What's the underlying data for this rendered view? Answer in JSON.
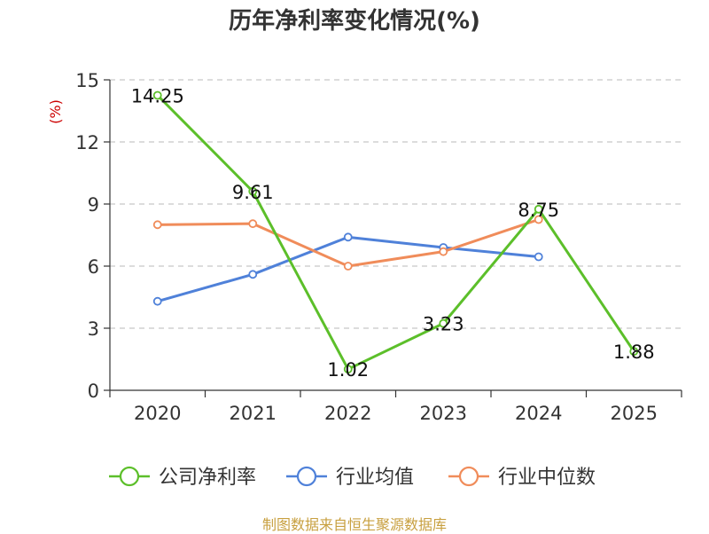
{
  "chart_data": {
    "type": "line",
    "title": "历年净利率变化情况(%)",
    "ylabel": "(%)",
    "categories": [
      "2020",
      "2021",
      "2022",
      "2023",
      "2024",
      "2025"
    ],
    "ylim": [
      0,
      15
    ],
    "yticks": [
      0,
      3,
      6,
      9,
      12,
      15
    ],
    "grid": true,
    "legend_position": "bottom",
    "series": [
      {
        "name": "公司净利率",
        "color": "#5cbf2a",
        "values": [
          14.25,
          9.61,
          1.02,
          3.23,
          8.75,
          1.88
        ],
        "labels": [
          "14.25",
          "9.61",
          "1.02",
          "3.23",
          "8.75",
          "1.88"
        ]
      },
      {
        "name": "行业均值",
        "color": "#4f81d9",
        "values": [
          4.3,
          5.6,
          7.4,
          6.9,
          6.45,
          null
        ]
      },
      {
        "name": "行业中位数",
        "color": "#f08c5a",
        "values": [
          8.0,
          8.05,
          6.0,
          6.7,
          8.25,
          null
        ]
      }
    ]
  },
  "footer": {
    "source": "制图数据来自恒生聚源数据库"
  }
}
